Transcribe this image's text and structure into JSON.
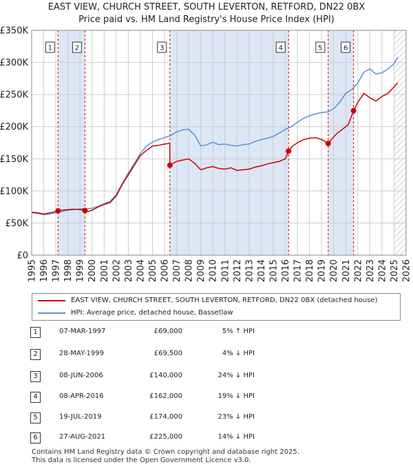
{
  "title_line1": "EAST VIEW, CHURCH STREET, SOUTH LEVERTON, RETFORD, DN22 0BX",
  "title_line2": "Price paid vs. HM Land Registry's House Price Index (HPI)",
  "legend": {
    "property_label": "EAST VIEW, CHURCH STREET, SOUTH LEVERTON, RETFORD, DN22 0BX (detached house)",
    "hpi_label": "HPI: Average price, detached house, Bassetlaw"
  },
  "colors": {
    "property": "#cc0000",
    "hpi": "#5b8fd6",
    "shade": "#dde6f5",
    "grid": "#cccccc",
    "marker_line": "#cc0000"
  },
  "sales": [
    {
      "num": "1",
      "date": "07-MAR-1997",
      "price": "£69,000",
      "hpi": "5% ↑ HPI"
    },
    {
      "num": "2",
      "date": "28-MAY-1999",
      "price": "£69,500",
      "hpi": "4% ↓ HPI"
    },
    {
      "num": "3",
      "date": "08-JUN-2006",
      "price": "£140,000",
      "hpi": "24% ↓ HPI"
    },
    {
      "num": "4",
      "date": "08-APR-2016",
      "price": "£162,000",
      "hpi": "19% ↓ HPI"
    },
    {
      "num": "5",
      "date": "19-JUL-2019",
      "price": "£174,000",
      "hpi": "23% ↓ HPI"
    },
    {
      "num": "6",
      "date": "27-AUG-2021",
      "price": "£225,000",
      "hpi": "14% ↓ HPI"
    }
  ],
  "footer_line1": "Contains HM Land Registry data © Crown copyright and database right 2025.",
  "footer_line2": "This data is licensed under the Open Government Licence v3.0.",
  "chart_data": {
    "type": "line",
    "title": "Price paid vs. HM Land Registry's House Price Index (HPI)",
    "xlabel": "",
    "ylabel": "",
    "xlim": [
      1995,
      2026
    ],
    "ylim": [
      0,
      350000
    ],
    "y_ticks": [
      0,
      50000,
      100000,
      150000,
      200000,
      250000,
      300000,
      350000
    ],
    "y_tick_labels": [
      "£0",
      "£50K",
      "£100K",
      "£150K",
      "£200K",
      "£250K",
      "£300K",
      "£350K"
    ],
    "x_ticks": [
      1995,
      1996,
      1997,
      1998,
      1999,
      2000,
      2001,
      2002,
      2003,
      2004,
      2005,
      2006,
      2007,
      2008,
      2009,
      2010,
      2011,
      2012,
      2013,
      2014,
      2015,
      2016,
      2017,
      2018,
      2019,
      2020,
      2021,
      2022,
      2023,
      2024,
      2025,
      2026
    ],
    "x_tick_labels": [
      "1995",
      "1996",
      "1997",
      "1998",
      "1999",
      "2000",
      "2001",
      "2002",
      "2003",
      "2004",
      "2005",
      "2006",
      "2007",
      "2008",
      "2009",
      "2010",
      "2011",
      "2012",
      "2013",
      "2014",
      "2015",
      "2016",
      "2017",
      "2018",
      "2019",
      "2020",
      "2021",
      "2022",
      "2023",
      "2024",
      "2025",
      "2026"
    ],
    "shaded_periods": [
      [
        1997.18,
        1999.41
      ],
      [
        2006.44,
        2016.27
      ],
      [
        2019.55,
        2021.65
      ]
    ],
    "hatched_from": 2025.0,
    "sale_markers": [
      {
        "label": "1",
        "x": 1997.18,
        "y": 69000
      },
      {
        "label": "2",
        "x": 1999.41,
        "y": 69500
      },
      {
        "label": "3",
        "x": 2006.44,
        "y": 140000
      },
      {
        "label": "4",
        "x": 2016.27,
        "y": 162000
      },
      {
        "label": "5",
        "x": 2019.55,
        "y": 174000
      },
      {
        "label": "6",
        "x": 2021.65,
        "y": 225000
      }
    ],
    "series": [
      {
        "name": "EAST VIEW, CHURCH STREET, SOUTH LEVERTON, RETFORD, DN22 0BX (detached house)",
        "x": [
          1995,
          1995.5,
          1996,
          1996.5,
          1997,
          1997.18,
          1997.5,
          1998,
          1998.5,
          1999,
          1999.41,
          1999.7,
          2000,
          2000.5,
          2001,
          2001.5,
          2002,
          2002.5,
          2003,
          2003.5,
          2004,
          2004.5,
          2005,
          2005.5,
          2006,
          2006.43,
          2006.44,
          2007,
          2007.5,
          2008,
          2008.5,
          2009,
          2009.5,
          2010,
          2010.5,
          2011,
          2011.5,
          2012,
          2012.5,
          2013,
          2013.5,
          2014,
          2014.5,
          2015,
          2015.5,
          2016,
          2016.27,
          2016.6,
          2017,
          2017.5,
          2018,
          2018.5,
          2019,
          2019.55,
          2019.9,
          2020.3,
          2020.8,
          2021.2,
          2021.65,
          2022,
          2022.5,
          2023,
          2023.5,
          2024,
          2024.5,
          2025,
          2025.3
        ],
        "y": [
          67000,
          66000,
          64000,
          66000,
          68000,
          69000,
          70000,
          71000,
          71500,
          71000,
          69500,
          68000,
          70000,
          75000,
          79000,
          82000,
          92000,
          110000,
          125000,
          140000,
          155000,
          163000,
          170000,
          171000,
          173000,
          174000,
          140000,
          146000,
          148000,
          150000,
          143000,
          133000,
          136000,
          138000,
          135000,
          134000,
          136000,
          132000,
          133000,
          134000,
          137000,
          139000,
          142000,
          144000,
          146000,
          150000,
          162000,
          170000,
          175000,
          180000,
          182000,
          183000,
          180000,
          174000,
          182000,
          190000,
          197000,
          203000,
          225000,
          238000,
          252000,
          245000,
          240000,
          247000,
          252000,
          262000,
          268000
        ]
      },
      {
        "name": "HPI: Average price, detached house, Bassetlaw",
        "x": [
          1995,
          1995.5,
          1996,
          1996.5,
          1997,
          1997.5,
          1998,
          1998.5,
          1999,
          1999.5,
          2000,
          2000.5,
          2001,
          2001.5,
          2002,
          2002.5,
          2003,
          2003.5,
          2004,
          2004.5,
          2005,
          2005.5,
          2006,
          2006.5,
          2007,
          2007.5,
          2008,
          2008.5,
          2009,
          2009.5,
          2010,
          2010.5,
          2011,
          2011.5,
          2012,
          2012.5,
          2013,
          2013.5,
          2014,
          2014.5,
          2015,
          2015.5,
          2016,
          2016.5,
          2017,
          2017.5,
          2018,
          2018.5,
          2019,
          2019.5,
          2020,
          2020.5,
          2021,
          2021.5,
          2022,
          2022.5,
          2023,
          2023.5,
          2024,
          2024.5,
          2025,
          2025.3
        ],
        "y": [
          66000,
          65000,
          63000,
          64000,
          66000,
          68000,
          70000,
          71000,
          72000,
          72000,
          73000,
          76000,
          80000,
          84000,
          94000,
          112000,
          128000,
          143000,
          158000,
          170000,
          176000,
          180000,
          183000,
          186000,
          192000,
          195000,
          196000,
          187000,
          170000,
          172000,
          176000,
          172000,
          173000,
          171000,
          170000,
          172000,
          173000,
          177000,
          180000,
          182000,
          185000,
          190000,
          196000,
          200000,
          207000,
          213000,
          217000,
          220000,
          222000,
          223000,
          228000,
          238000,
          252000,
          258000,
          268000,
          285000,
          290000,
          282000,
          284000,
          290000,
          298000,
          308000
        ]
      }
    ]
  }
}
